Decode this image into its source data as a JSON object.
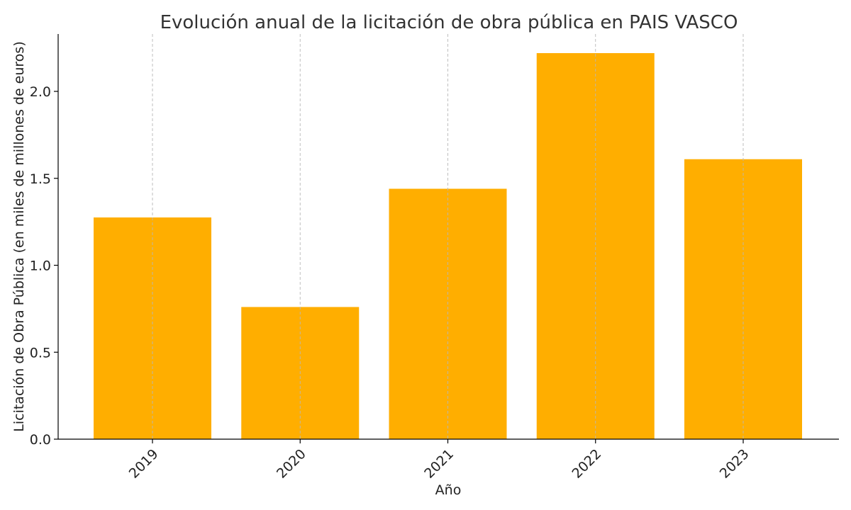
{
  "chart_data": {
    "type": "bar",
    "title": "Evolución anual de la licitación de obra pública en PAIS VASCO",
    "xlabel": "Año",
    "ylabel": "Licitación de Obra Pública (en miles de millones de euros)",
    "categories": [
      "2019",
      "2020",
      "2021",
      "2022",
      "2023"
    ],
    "values": [
      1.275,
      0.76,
      1.44,
      2.22,
      1.61
    ],
    "ylim": [
      0,
      2.33
    ],
    "yticks": [
      "0.0",
      "0.5",
      "1.0",
      "1.5",
      "2.0"
    ],
    "bar_color": "#FFAE00",
    "grid": "vertical dashed",
    "xtick_rotation_deg": 45
  }
}
